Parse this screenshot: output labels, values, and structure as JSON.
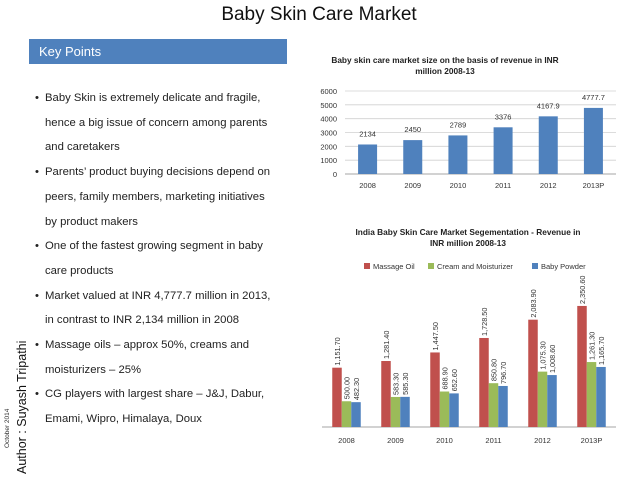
{
  "page": {
    "title": "Baby Skin Care Market",
    "key_points_header": "Key Points",
    "bullets": [
      [
        "Baby Skin is extremely delicate and fragile,",
        "hence a big issue of concern among parents",
        "and caretakers"
      ],
      [
        "Parents’ product buying decisions depend on",
        "peers, family members, marketing initiatives",
        "by product makers"
      ],
      [
        "One of the fastest growing segment in baby",
        "care products"
      ],
      [
        "Market valued at INR 4,777.7 million in 2013,",
        "in contrast to INR 2,134 million in 2008"
      ],
      [
        "Massage oils – approx 50%, creams and",
        "moisturizers – 25%"
      ],
      [
        "CG players with largest share – J&J, Dabur,",
        "Emami, Wipro, Himalaya, Doux"
      ]
    ],
    "bullet_symbol": "•",
    "author": "Author : Suyash Tripathi",
    "date": "October 2014"
  },
  "chart_data": [
    {
      "type": "bar",
      "title_lines": [
        "Baby skin care market size on the basis of revenue in INR",
        "million 2008-13"
      ],
      "categories": [
        "2008",
        "2009",
        "2010",
        "2011",
        "2012",
        "2013P"
      ],
      "values": [
        2134,
        2450,
        2789,
        3376,
        4167.9,
        4777.7
      ],
      "value_labels": [
        "2134",
        "2450",
        "2789",
        "3376",
        "4167.9",
        "4777.7"
      ],
      "ylim": [
        0,
        6000
      ],
      "yticks": [
        "0",
        "1000",
        "2000",
        "3000",
        "4000",
        "5000",
        "6000"
      ],
      "grid": true,
      "color": "#4f81bd"
    },
    {
      "type": "bar",
      "title_lines": [
        "India Baby Skin Care Market Segementation - Revenue in",
        "INR million 2008-13"
      ],
      "categories": [
        "2008",
        "2009",
        "2010",
        "2011",
        "2012",
        "2013P"
      ],
      "series": [
        {
          "name": "Massage Oil",
          "color": "#c0504d",
          "values": [
            1151.7,
            1281.4,
            1447.5,
            1728.5,
            2083.9,
            2350.6
          ],
          "labels": [
            "1,151.70",
            "1,281.40",
            "1,447.50",
            "1,728.50",
            "2,083.90",
            "2,350.60"
          ]
        },
        {
          "name": "Cream and Moisturizer",
          "color": "#9bbb59",
          "values": [
            500,
            583.3,
            688.9,
            850.8,
            1075.3,
            1261.3
          ],
          "labels": [
            "500.00",
            "583.30",
            "688.90",
            "850.80",
            "1,075.30",
            "1,261.30"
          ]
        },
        {
          "name": "Baby Powder",
          "color": "#4f81bd",
          "values": [
            482.3,
            585.3,
            652.6,
            796.7,
            1008.6,
            1165.7
          ],
          "labels": [
            "482.30",
            "585.30",
            "652.60",
            "796.70",
            "1,008.60",
            "1,165.70"
          ]
        }
      ],
      "legend_position": "top",
      "ylim": [
        0,
        2400
      ]
    }
  ]
}
